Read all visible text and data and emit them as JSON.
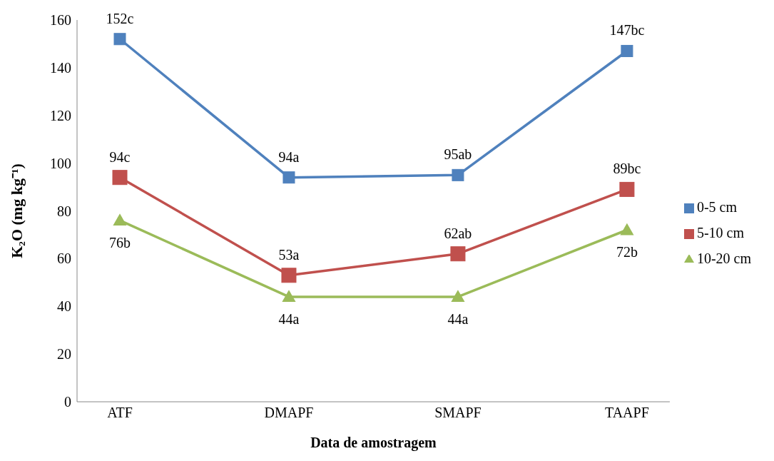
{
  "chart_data": {
    "type": "line",
    "xlabel": "Data de amostragem",
    "ylabel": "K₂O (mg kg⁻¹)",
    "categories": [
      "ATF",
      "DMAPF",
      "SMAPF",
      "TAAPF"
    ],
    "series": [
      {
        "name": "0-5 cm",
        "color": "#4f81bd",
        "marker": "square",
        "values": [
          152,
          94,
          95,
          147
        ],
        "value_labels": [
          "152c",
          "94a",
          "95ab",
          "147bc"
        ]
      },
      {
        "name": "5-10 cm",
        "color": "#c0504d",
        "marker": "square",
        "values": [
          94,
          53,
          62,
          89
        ],
        "value_labels": [
          "94c",
          "53a",
          "62ab",
          "89bc"
        ]
      },
      {
        "name": "10-20 cm",
        "color": "#9bbb59",
        "marker": "triangle",
        "values": [
          76,
          44,
          44,
          72
        ],
        "value_labels": [
          "76b",
          "44a",
          "44a",
          "72b"
        ]
      }
    ],
    "ylim": [
      0,
      160
    ],
    "yticks": [
      0,
      20,
      40,
      60,
      80,
      100,
      120,
      140,
      160
    ],
    "grid": false,
    "legend": "right",
    "line_style": "solid"
  }
}
